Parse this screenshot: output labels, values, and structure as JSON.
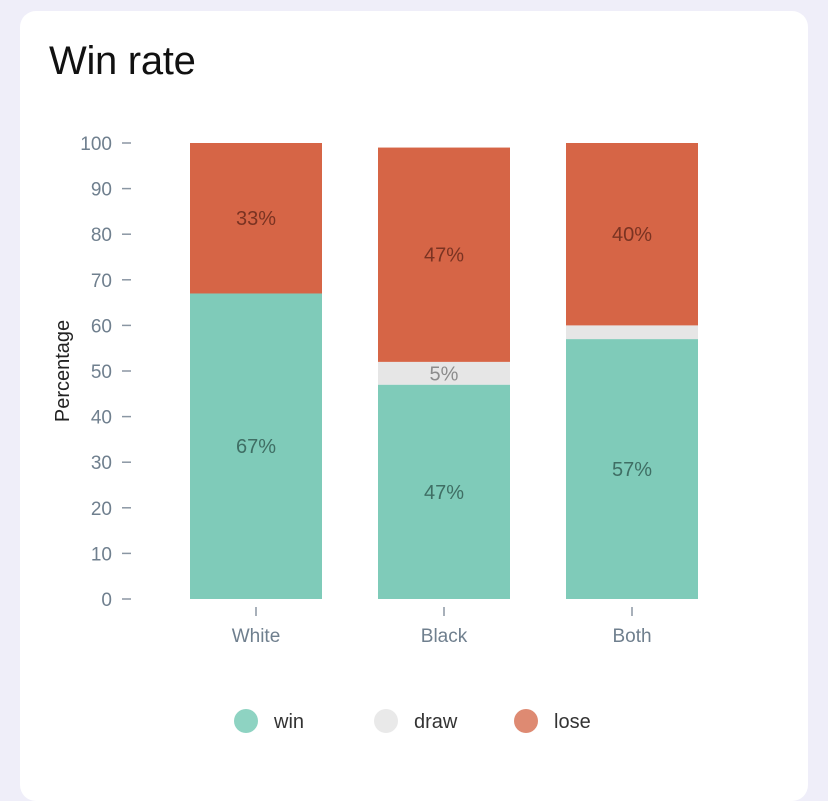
{
  "card": {
    "title": "Win rate"
  },
  "chart_data": {
    "type": "bar",
    "stacked": true,
    "title": "Win rate",
    "xlabel": "",
    "ylabel": "Percentage",
    "ylim": [
      0,
      100
    ],
    "yticks": [
      0,
      10,
      20,
      30,
      40,
      50,
      60,
      70,
      80,
      90,
      100
    ],
    "categories": [
      "White",
      "Black",
      "Both"
    ],
    "series": [
      {
        "name": "win",
        "color": "#7fcbb9",
        "values": [
          67,
          47,
          57
        ],
        "labels": [
          "67%",
          "47%",
          "57%"
        ]
      },
      {
        "name": "draw",
        "color": "#e6e6e6",
        "values": [
          0,
          5,
          3
        ],
        "labels": [
          "",
          "5%",
          ""
        ]
      },
      {
        "name": "lose",
        "color": "#d66546",
        "values": [
          33,
          47,
          40
        ],
        "labels": [
          "33%",
          "47%",
          "40%"
        ]
      }
    ],
    "legend": {
      "position": "bottom",
      "marker_colors": [
        "#8ed3c2",
        "#e9e9e9",
        "#de8a72"
      ]
    }
  }
}
